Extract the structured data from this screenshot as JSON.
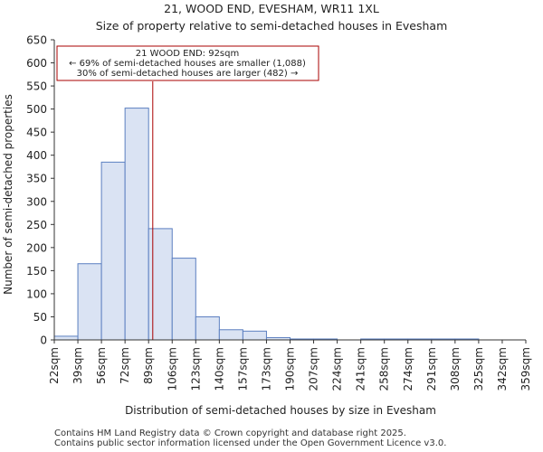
{
  "chart_data": {
    "type": "bar",
    "title_line1": "21, WOOD END, EVESHAM, WR11 1XL",
    "title_line2": "Size of property relative to semi-detached houses in Evesham",
    "xlabel": "Distribution of semi-detached houses by size in Evesham",
    "ylabel": "Number of semi-detached properties",
    "ylim": [
      0,
      650
    ],
    "yticks": [
      0,
      50,
      100,
      150,
      200,
      250,
      300,
      350,
      400,
      450,
      500,
      550,
      600,
      650
    ],
    "categories": [
      "22sqm",
      "39sqm",
      "56sqm",
      "72sqm",
      "89sqm",
      "106sqm",
      "123sqm",
      "140sqm",
      "157sqm",
      "173sqm",
      "190sqm",
      "207sqm",
      "224sqm",
      "241sqm",
      "258sqm",
      "274sqm",
      "291sqm",
      "308sqm",
      "325sqm",
      "342sqm",
      "359sqm"
    ],
    "values": [
      8,
      165,
      385,
      502,
      241,
      177,
      50,
      22,
      19,
      5,
      2,
      2,
      0,
      2,
      2,
      2,
      2,
      2,
      0,
      0,
      2
    ],
    "marker_value_sqm": 92,
    "annotation_lines": [
      "21 WOOD END: 92sqm",
      "← 69% of semi-detached houses are smaller (1,088)",
      "30% of semi-detached houses are larger (482) →"
    ],
    "colors": {
      "bar_fill": "#dae3f3",
      "bar_stroke": "#5b7fc0",
      "marker": "#aa0000",
      "annotation_border": "#aa0000",
      "axis": "#333333"
    }
  },
  "footer": {
    "line1": "Contains HM Land Registry data © Crown copyright and database right 2025.",
    "line2": "Contains public sector information licensed under the Open Government Licence v3.0."
  }
}
